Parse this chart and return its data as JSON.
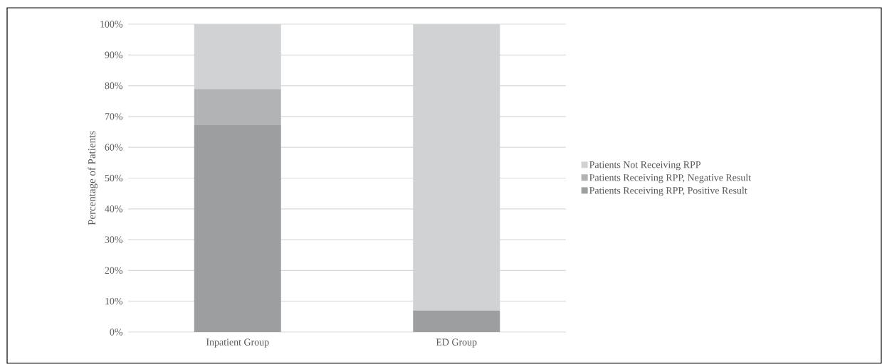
{
  "chart_data": {
    "type": "bar",
    "stacked": true,
    "ylabel": "Percentage of Patients",
    "categories": [
      "Inpatient Group",
      "ED Group"
    ],
    "series": [
      {
        "name": "Patients Receiving RPP, Positive Result",
        "color": "#9d9e9f",
        "values": [
          67.2,
          7.0
        ]
      },
      {
        "name": "Patients Receiving RPP, Negative Result",
        "color": "#b2b3b4",
        "values": [
          11.7,
          0
        ]
      },
      {
        "name": "Patients Not Receiving RPP",
        "color": "#d1d2d3",
        "values": [
          21.1,
          93.0
        ]
      }
    ],
    "ylim": [
      0,
      100
    ],
    "yticks": [
      {
        "value": 0,
        "label": "0%"
      },
      {
        "value": 10,
        "label": "10%"
      },
      {
        "value": 20,
        "label": "20%"
      },
      {
        "value": 30,
        "label": "30%"
      },
      {
        "value": 40,
        "label": "40%"
      },
      {
        "value": 50,
        "label": "50%"
      },
      {
        "value": 60,
        "label": "60%"
      },
      {
        "value": 70,
        "label": "70%"
      },
      {
        "value": 80,
        "label": "80%"
      },
      {
        "value": 90,
        "label": "90%"
      },
      {
        "value": 100,
        "label": "100%"
      }
    ],
    "grid": "y",
    "legend": "right"
  }
}
